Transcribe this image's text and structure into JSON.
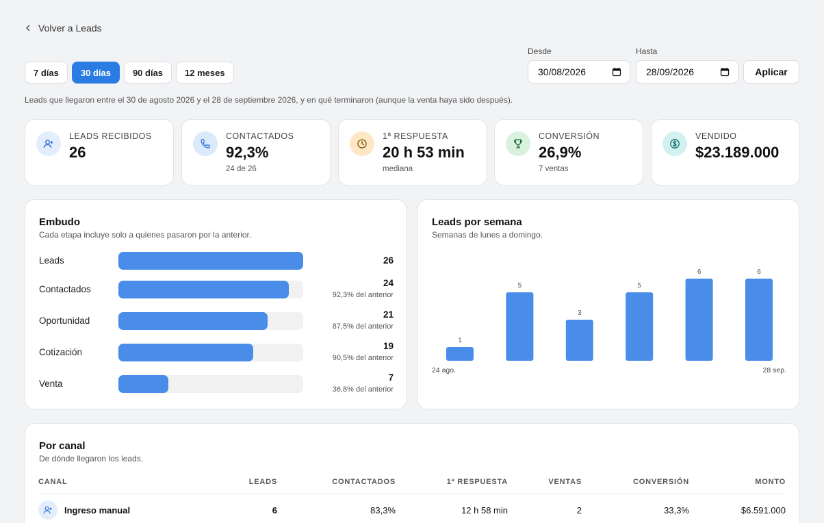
{
  "nav": {
    "back_label": "Volver a Leads"
  },
  "range_buttons": [
    {
      "label": "7 días",
      "active": false
    },
    {
      "label": "30 días",
      "active": true
    },
    {
      "label": "90 días",
      "active": false
    },
    {
      "label": "12 meses",
      "active": false
    }
  ],
  "filters": {
    "from_label": "Desde",
    "from_value": "30/08/2026",
    "to_label": "Hasta",
    "to_value": "28/09/2026",
    "apply_label": "Aplicar"
  },
  "note": "Leads que llegaron entre el 30 de agosto 2026 y el 28 de septiembre 2026, y en qué terminaron (aunque la venta haya sido después).",
  "kpis": [
    {
      "label": "LEADS RECIBIDOS",
      "value": "26",
      "sub": "",
      "icon": "user-plus-icon",
      "icon_bg": "#e4edfb",
      "icon_color": "#2a6fd6"
    },
    {
      "label": "CONTACTADOS",
      "value": "92,3%",
      "sub": "24 de 26",
      "icon": "phone-icon",
      "icon_bg": "#dbe9fb",
      "icon_color": "#2a6fd6"
    },
    {
      "label": "1ª RESPUESTA",
      "value": "20 h 53 min",
      "sub": "mediana",
      "icon": "clock-icon",
      "icon_bg": "#fde7c4",
      "icon_color": "#a26a10"
    },
    {
      "label": "CONVERSIÓN",
      "value": "26,9%",
      "sub": "7 ventas",
      "icon": "trophy-icon",
      "icon_bg": "#d8f2dd",
      "icon_color": "#2b8a3e"
    },
    {
      "label": "VENDIDO",
      "value": "$23.189.000",
      "sub": "",
      "icon": "dollar-icon",
      "icon_bg": "#d2f1f1",
      "icon_color": "#168a8a"
    }
  ],
  "funnel": {
    "title": "Embudo",
    "subtitle": "Cada etapa incluye solo a quienes pasaron por la anterior.",
    "stages": [
      {
        "label": "Leads",
        "count": "26",
        "pct": "",
        "value": 26
      },
      {
        "label": "Contactados",
        "count": "24",
        "pct": "92,3% del anterior",
        "value": 24
      },
      {
        "label": "Oportunidad",
        "count": "21",
        "pct": "87,5% del anterior",
        "value": 21
      },
      {
        "label": "Cotización",
        "count": "19",
        "pct": "90,5% del anterior",
        "value": 19
      },
      {
        "label": "Venta",
        "count": "7",
        "pct": "36,8% del anterior",
        "value": 7
      }
    ],
    "max": 26
  },
  "weekly": {
    "title": "Leads por semana",
    "subtitle": "Semanas de lunes a domingo.",
    "start_label": "24 ago.",
    "end_label": "28 sep."
  },
  "chart_data": {
    "type": "bar",
    "categories": [
      "1",
      "2",
      "3",
      "4",
      "5",
      "6"
    ],
    "values": [
      1,
      5,
      3,
      5,
      6,
      6
    ],
    "ylim": [
      0,
      6
    ]
  },
  "channels": {
    "title": "Por canal",
    "subtitle": "De dónde llegaron los leads.",
    "columns": [
      "CANAL",
      "LEADS",
      "CONTACTADOS",
      "1ª RESPUESTA",
      "VENTAS",
      "CONVERSIÓN",
      "MONTO"
    ],
    "rows": [
      {
        "canal": "Ingreso manual",
        "leads": "6",
        "contactados": "83,3%",
        "respuesta": "12 h 58 min",
        "ventas": "2",
        "conversion": "33,3%",
        "monto": "$6.591.000",
        "icon": "user-plus-icon"
      }
    ]
  },
  "colors": {
    "accent": "#2a7be4",
    "bar": "#4a8de8"
  }
}
